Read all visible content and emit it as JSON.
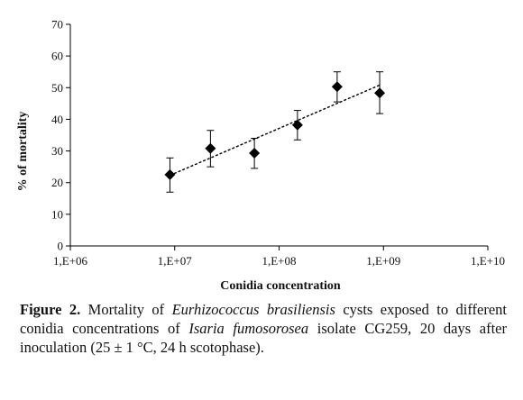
{
  "chart_data": {
    "type": "scatter",
    "xlabel": "Conidia concentration",
    "ylabel": "% of mortality",
    "x_scale": "log",
    "xlim": [
      1000000,
      10000000000
    ],
    "x_ticks": [
      "1,E+06",
      "1,E+07",
      "1,E+08",
      "1,E+09",
      "1,E+10"
    ],
    "x_tick_values": [
      1000000,
      10000000,
      100000000,
      1000000000,
      10000000000
    ],
    "ylim": [
      0,
      70
    ],
    "y_ticks": [
      0,
      10,
      20,
      30,
      40,
      50,
      60,
      70
    ],
    "points": [
      {
        "x": 9000000,
        "y": 22.5,
        "err_low": 17,
        "err_high": 27.8
      },
      {
        "x": 22000000,
        "y": 30.8,
        "err_low": 25,
        "err_high": 36.5
      },
      {
        "x": 58000000,
        "y": 29.3,
        "err_low": 24.5,
        "err_high": 34
      },
      {
        "x": 150000000,
        "y": 38.2,
        "err_low": 33.5,
        "err_high": 42.8
      },
      {
        "x": 360000000,
        "y": 50.3,
        "err_low": 45.5,
        "err_high": 55
      },
      {
        "x": 920000000,
        "y": 48.3,
        "err_low": 41.8,
        "err_high": 55
      }
    ],
    "trendline": {
      "x": [
        9000000,
        920000000
      ],
      "y": [
        22.3,
        50.8
      ],
      "style": "dashed"
    },
    "grid": false,
    "marker": "diamond",
    "color": "#000000"
  },
  "caption": {
    "label": "Figure 2.",
    "t1": " Mortality of ",
    "species1": "Eurhizococcus brasiliensis",
    "t2": " cysts exposed to different conidia concentrations of ",
    "species2": "Isaria fumosorosea",
    "t3": " isolate CG259, 20 days after inoculation (25 ± 1 °C, 24 h scotophase)."
  }
}
